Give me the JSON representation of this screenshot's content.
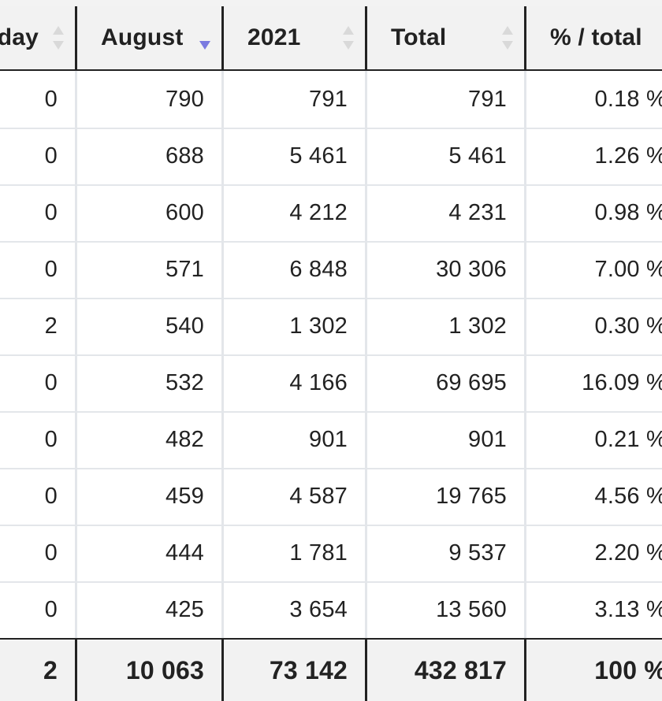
{
  "table": {
    "columns": [
      {
        "label": "day",
        "sort": "none"
      },
      {
        "label": "August",
        "sort": "desc"
      },
      {
        "label": "2021",
        "sort": "none"
      },
      {
        "label": "Total",
        "sort": "none"
      },
      {
        "label": "% / total",
        "sort": "none"
      }
    ],
    "rows": [
      [
        "0",
        "790",
        "791",
        "791",
        "0.18 %"
      ],
      [
        "0",
        "688",
        "5 461",
        "5 461",
        "1.26 %"
      ],
      [
        "0",
        "600",
        "4 212",
        "4 231",
        "0.98 %"
      ],
      [
        "0",
        "571",
        "6 848",
        "30 306",
        "7.00 %"
      ],
      [
        "2",
        "540",
        "1 302",
        "1 302",
        "0.30 %"
      ],
      [
        "0",
        "532",
        "4 166",
        "69 695",
        "16.09 %"
      ],
      [
        "0",
        "482",
        "901",
        "901",
        "0.21 %"
      ],
      [
        "0",
        "459",
        "4 587",
        "19 765",
        "4.56 %"
      ],
      [
        "0",
        "444",
        "1 781",
        "9 537",
        "2.20 %"
      ],
      [
        "0",
        "425",
        "3 654",
        "13 560",
        "3.13 %"
      ]
    ],
    "totals": [
      "2",
      "10 063",
      "73 142",
      "432 817",
      "100 %"
    ]
  },
  "colors": {
    "header_bg": "#f2f2f2",
    "sort_active": "#7a7ae0",
    "grid": "#e3e6ea"
  }
}
